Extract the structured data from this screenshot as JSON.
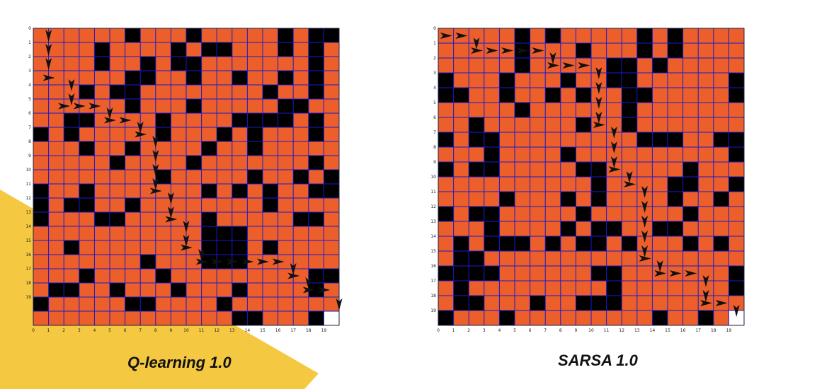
{
  "accent_yellow": "#F5C842",
  "free_color": "#EC5F2B",
  "wall_color": "#000000",
  "goal_color": "#FFFFFF",
  "grid_line_color": "#1A1ACC",
  "arrow_color": "#111111",
  "chart_data": [
    {
      "type": "heatmap",
      "title": "Q-learning 1.0",
      "grid_size": 20,
      "x_ticks": [
        "0",
        "1",
        "2",
        "3",
        "4",
        "5",
        "6",
        "7",
        "8",
        "9",
        "10",
        "11",
        "12",
        "13",
        "14",
        "15",
        "16",
        "17",
        "18",
        "19"
      ],
      "y_ticks": [
        "0",
        "1",
        "2",
        "3",
        "4",
        "5",
        "6",
        "7",
        "8",
        "9",
        "10",
        "11",
        "12",
        "13",
        "14",
        "15",
        "16",
        "17",
        "18",
        "19"
      ],
      "walls": [
        [
          0,
          6
        ],
        [
          0,
          10
        ],
        [
          0,
          16
        ],
        [
          0,
          18
        ],
        [
          0,
          19
        ],
        [
          1,
          4
        ],
        [
          1,
          9
        ],
        [
          1,
          11
        ],
        [
          1,
          12
        ],
        [
          1,
          16
        ],
        [
          1,
          18
        ],
        [
          2,
          4
        ],
        [
          2,
          7
        ],
        [
          2,
          9
        ],
        [
          2,
          10
        ],
        [
          2,
          18
        ],
        [
          3,
          6
        ],
        [
          3,
          7
        ],
        [
          3,
          10
        ],
        [
          3,
          13
        ],
        [
          3,
          16
        ],
        [
          3,
          18
        ],
        [
          4,
          3
        ],
        [
          4,
          5
        ],
        [
          4,
          6
        ],
        [
          4,
          15
        ],
        [
          4,
          18
        ],
        [
          5,
          6
        ],
        [
          5,
          10
        ],
        [
          5,
          16
        ],
        [
          5,
          17
        ],
        [
          6,
          2
        ],
        [
          6,
          3
        ],
        [
          6,
          8
        ],
        [
          6,
          13
        ],
        [
          6,
          14
        ],
        [
          6,
          15
        ],
        [
          6,
          16
        ],
        [
          6,
          18
        ],
        [
          7,
          0
        ],
        [
          7,
          2
        ],
        [
          7,
          8
        ],
        [
          7,
          12
        ],
        [
          7,
          14
        ],
        [
          7,
          18
        ],
        [
          8,
          3
        ],
        [
          8,
          6
        ],
        [
          8,
          11
        ],
        [
          8,
          14
        ],
        [
          9,
          5
        ],
        [
          9,
          10
        ],
        [
          9,
          18
        ],
        [
          10,
          8
        ],
        [
          10,
          14
        ],
        [
          10,
          17
        ],
        [
          10,
          19
        ],
        [
          11,
          0
        ],
        [
          11,
          3
        ],
        [
          11,
          11
        ],
        [
          11,
          13
        ],
        [
          11,
          15
        ],
        [
          11,
          18
        ],
        [
          11,
          19
        ],
        [
          12,
          0
        ],
        [
          12,
          2
        ],
        [
          12,
          3
        ],
        [
          12,
          6
        ],
        [
          12,
          15
        ],
        [
          13,
          0
        ],
        [
          13,
          4
        ],
        [
          13,
          5
        ],
        [
          13,
          11
        ],
        [
          13,
          17
        ],
        [
          13,
          18
        ],
        [
          14,
          11
        ],
        [
          14,
          12
        ],
        [
          14,
          13
        ],
        [
          15,
          2
        ],
        [
          15,
          11
        ],
        [
          15,
          12
        ],
        [
          15,
          13
        ],
        [
          15,
          15
        ],
        [
          16,
          7
        ],
        [
          16,
          11
        ],
        [
          16,
          12
        ],
        [
          16,
          13
        ],
        [
          17,
          3
        ],
        [
          17,
          8
        ],
        [
          17,
          18
        ],
        [
          17,
          19
        ],
        [
          18,
          1
        ],
        [
          18,
          2
        ],
        [
          18,
          5
        ],
        [
          18,
          9
        ],
        [
          18,
          13
        ],
        [
          18,
          18
        ],
        [
          19,
          0
        ],
        [
          19,
          6
        ],
        [
          19,
          7
        ],
        [
          19,
          12
        ],
        [
          20,
          13
        ],
        [
          20,
          14
        ],
        [
          20,
          18
        ]
      ],
      "goal": [
        20,
        19
      ],
      "path_arrows": [
        [
          0.5,
          1,
          "down"
        ],
        [
          1.5,
          1,
          "down"
        ],
        [
          2.5,
          1,
          "down"
        ],
        [
          3.5,
          1,
          "right"
        ],
        [
          4,
          2.5,
          "down"
        ],
        [
          5,
          2.5,
          "down"
        ],
        [
          5.5,
          2,
          "right"
        ],
        [
          5.5,
          3,
          "right"
        ],
        [
          5.5,
          4,
          "right"
        ],
        [
          6,
          5,
          "down"
        ],
        [
          6.5,
          5,
          "right"
        ],
        [
          6.5,
          6,
          "right"
        ],
        [
          7,
          7,
          "down"
        ],
        [
          7.5,
          7,
          "right"
        ],
        [
          8,
          8,
          "down"
        ],
        [
          9,
          8,
          "down"
        ],
        [
          10,
          8,
          "down"
        ],
        [
          11,
          8,
          "down"
        ],
        [
          11.5,
          8,
          "right"
        ],
        [
          12,
          9,
          "down"
        ],
        [
          13,
          9,
          "down"
        ],
        [
          13.5,
          9,
          "right"
        ],
        [
          14,
          10,
          "down"
        ],
        [
          15,
          10,
          "down"
        ],
        [
          15.5,
          10,
          "right"
        ],
        [
          16,
          11,
          "down"
        ],
        [
          16.5,
          11,
          "right"
        ],
        [
          16.5,
          12,
          "right"
        ],
        [
          16.5,
          13,
          "right"
        ],
        [
          16.5,
          14,
          "right"
        ],
        [
          16.5,
          15,
          "right"
        ],
        [
          16.5,
          16,
          "right"
        ],
        [
          17,
          17,
          "down"
        ],
        [
          17.5,
          17,
          "right"
        ],
        [
          18,
          18,
          "down"
        ],
        [
          18.5,
          18,
          "right"
        ],
        [
          18.5,
          19,
          "right"
        ],
        [
          19.5,
          20,
          "down"
        ]
      ]
    },
    {
      "type": "heatmap",
      "title": "SARSA 1.0",
      "grid_size": 20,
      "x_ticks": [
        "0",
        "1",
        "2",
        "3",
        "4",
        "5",
        "6",
        "7",
        "8",
        "9",
        "10",
        "11",
        "12",
        "13",
        "14",
        "15",
        "16",
        "17",
        "18",
        "19"
      ],
      "y_ticks": [
        "0",
        "1",
        "2",
        "3",
        "4",
        "5",
        "6",
        "7",
        "8",
        "9",
        "10",
        "11",
        "12",
        "13",
        "14",
        "15",
        "16",
        "17",
        "18",
        "19"
      ],
      "walls": [
        [
          0,
          5
        ],
        [
          0,
          7
        ],
        [
          0,
          13
        ],
        [
          0,
          15
        ],
        [
          1,
          5
        ],
        [
          1,
          9
        ],
        [
          1,
          13
        ],
        [
          1,
          15
        ],
        [
          2,
          5
        ],
        [
          2,
          11
        ],
        [
          2,
          12
        ],
        [
          2,
          14
        ],
        [
          3,
          0
        ],
        [
          3,
          4
        ],
        [
          3,
          8
        ],
        [
          3,
          11
        ],
        [
          3,
          12
        ],
        [
          3,
          19
        ],
        [
          4,
          0
        ],
        [
          4,
          1
        ],
        [
          4,
          4
        ],
        [
          4,
          7
        ],
        [
          4,
          9
        ],
        [
          4,
          12
        ],
        [
          4,
          13
        ],
        [
          4,
          19
        ],
        [
          5,
          5
        ],
        [
          5,
          12
        ],
        [
          6,
          2
        ],
        [
          6,
          9
        ],
        [
          6,
          12
        ],
        [
          7,
          0
        ],
        [
          7,
          2
        ],
        [
          7,
          3
        ],
        [
          7,
          13
        ],
        [
          7,
          14
        ],
        [
          7,
          15
        ],
        [
          7,
          18
        ],
        [
          7,
          19
        ],
        [
          8,
          3
        ],
        [
          8,
          8
        ],
        [
          8,
          19
        ],
        [
          9,
          0
        ],
        [
          9,
          2
        ],
        [
          9,
          3
        ],
        [
          9,
          9
        ],
        [
          9,
          10
        ],
        [
          9,
          16
        ],
        [
          10,
          10
        ],
        [
          10,
          15
        ],
        [
          10,
          16
        ],
        [
          10,
          19
        ],
        [
          11,
          4
        ],
        [
          11,
          8
        ],
        [
          11,
          10
        ],
        [
          11,
          15
        ],
        [
          11,
          18
        ],
        [
          12,
          0
        ],
        [
          12,
          2
        ],
        [
          12,
          3
        ],
        [
          12,
          9
        ],
        [
          12,
          16
        ],
        [
          13,
          3
        ],
        [
          13,
          8
        ],
        [
          13,
          10
        ],
        [
          13,
          11
        ],
        [
          13,
          14
        ],
        [
          13,
          15
        ],
        [
          14,
          1
        ],
        [
          14,
          3
        ],
        [
          14,
          4
        ],
        [
          14,
          5
        ],
        [
          14,
          7
        ],
        [
          14,
          9
        ],
        [
          14,
          10
        ],
        [
          14,
          12
        ],
        [
          14,
          16
        ],
        [
          14,
          18
        ],
        [
          15,
          1
        ],
        [
          15,
          2
        ],
        [
          16,
          0
        ],
        [
          16,
          1
        ],
        [
          16,
          2
        ],
        [
          16,
          3
        ],
        [
          16,
          10
        ],
        [
          16,
          11
        ],
        [
          16,
          19
        ],
        [
          17,
          1
        ],
        [
          17,
          11
        ],
        [
          17,
          19
        ],
        [
          18,
          1
        ],
        [
          18,
          2
        ],
        [
          18,
          6
        ],
        [
          18,
          9
        ],
        [
          18,
          10
        ],
        [
          18,
          11
        ],
        [
          19,
          0
        ],
        [
          19,
          4
        ],
        [
          19,
          14
        ],
        [
          19,
          17
        ]
      ],
      "goal": [
        19,
        19
      ],
      "path_arrows": [
        [
          0.5,
          0.5,
          "right"
        ],
        [
          0.5,
          1.5,
          "right"
        ],
        [
          1,
          2.5,
          "down"
        ],
        [
          1.5,
          2.5,
          "right"
        ],
        [
          1.5,
          3.5,
          "right"
        ],
        [
          1.5,
          4.5,
          "right"
        ],
        [
          1.5,
          5.5,
          "right"
        ],
        [
          1.5,
          6.5,
          "right"
        ],
        [
          2,
          7.5,
          "down"
        ],
        [
          2.5,
          7.5,
          "right"
        ],
        [
          2.5,
          8.5,
          "right"
        ],
        [
          2.5,
          9.5,
          "right"
        ],
        [
          3,
          10.5,
          "down"
        ],
        [
          4,
          10.5,
          "down"
        ],
        [
          5,
          10.5,
          "down"
        ],
        [
          6,
          10.5,
          "down"
        ],
        [
          6.5,
          10.5,
          "right"
        ],
        [
          7,
          11.5,
          "down"
        ],
        [
          8,
          11.5,
          "down"
        ],
        [
          9,
          11.5,
          "down"
        ],
        [
          9.5,
          11.5,
          "right"
        ],
        [
          10,
          12.5,
          "down"
        ],
        [
          10.5,
          12.5,
          "right"
        ],
        [
          11,
          13.5,
          "down"
        ],
        [
          12,
          13.5,
          "down"
        ],
        [
          13,
          13.5,
          "down"
        ],
        [
          14,
          13.5,
          "down"
        ],
        [
          15,
          13.5,
          "down"
        ],
        [
          15.5,
          13.5,
          "right"
        ],
        [
          16,
          14.5,
          "down"
        ],
        [
          16.5,
          14.5,
          "right"
        ],
        [
          16.5,
          15.5,
          "right"
        ],
        [
          16.5,
          16.5,
          "right"
        ],
        [
          17,
          17.5,
          "down"
        ],
        [
          18,
          17.5,
          "down"
        ],
        [
          18.5,
          17.5,
          "right"
        ],
        [
          18.5,
          18.5,
          "right"
        ],
        [
          19,
          19.5,
          "down"
        ]
      ]
    }
  ]
}
